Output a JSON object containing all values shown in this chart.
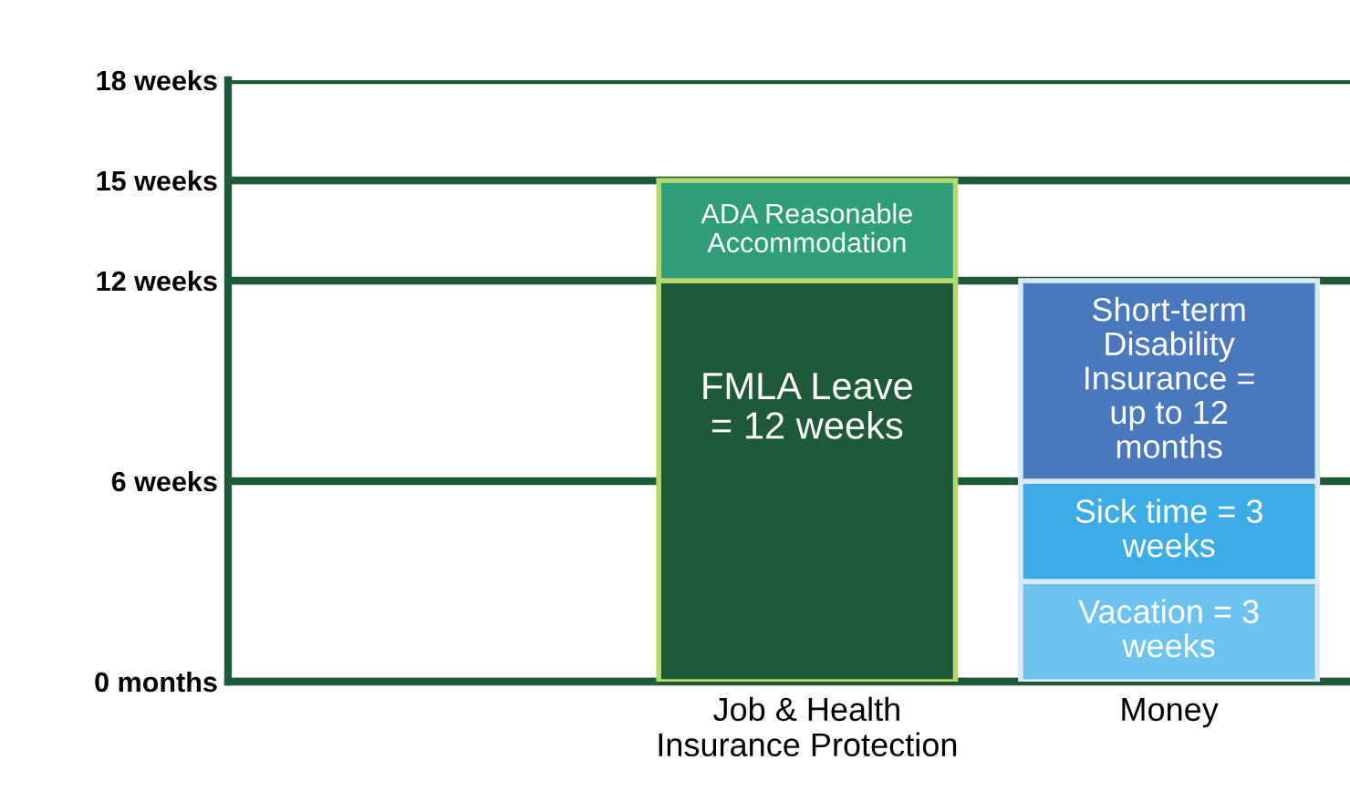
{
  "chart_data": {
    "type": "bar",
    "stacked": true,
    "categories": [
      null,
      "Job & Health\nInsurance Protection",
      "Money"
    ],
    "series": [
      {
        "name": "FMLA Leave\n= 12 weeks",
        "color": "#1e5a37",
        "values": [
          null,
          12,
          null
        ]
      },
      {
        "name": "ADA Reasonable\nAccommodation",
        "color": "#2e9e78",
        "values": [
          null,
          3,
          null
        ]
      },
      {
        "name": "Vacation = 3\nweeks",
        "color": "#6cc3ef",
        "values": [
          null,
          null,
          3
        ]
      },
      {
        "name": "Sick time = 3\nweeks",
        "color": "#3bace6",
        "values": [
          null,
          null,
          3
        ]
      },
      {
        "name": "Short-term\nDisability\nInsurance =\nup to 12\nmonths",
        "color": "#4a78bd",
        "values": [
          null,
          null,
          6
        ]
      }
    ],
    "ylim": [
      0,
      18
    ],
    "yticks": [
      {
        "value": 0,
        "label": "0 months"
      },
      {
        "value": 6,
        "label": "6 weeks"
      },
      {
        "value": 12,
        "label": "12 weeks"
      },
      {
        "value": 15,
        "label": "15 weeks"
      },
      {
        "value": 18,
        "label": "18 weeks"
      }
    ],
    "grid": "y"
  }
}
